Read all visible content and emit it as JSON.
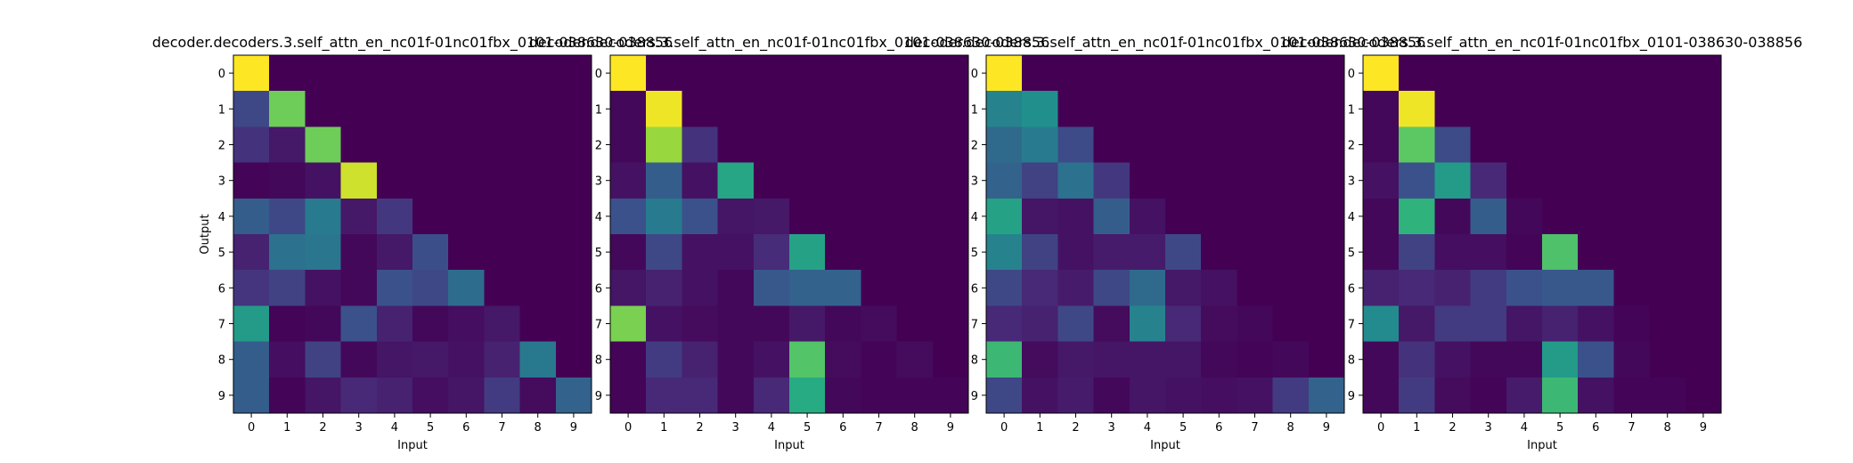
{
  "chart_data": [
    {
      "type": "heatmap",
      "title": "decoder.decoders.3.self_attn_en_nc01f-01nc01fbx_0101-038630-038856",
      "xlabel": "Input",
      "ylabel": "Output",
      "x_ticks": [
        "0",
        "1",
        "2",
        "3",
        "4",
        "5",
        "6",
        "7",
        "8",
        "9"
      ],
      "y_ticks": [
        "0",
        "1",
        "2",
        "3",
        "4",
        "5",
        "6",
        "7",
        "8",
        "9"
      ],
      "colormap": "viridis",
      "values": [
        [
          1.0,
          0.0,
          0.0,
          0.0,
          0.0,
          0.0,
          0.0,
          0.0,
          0.0,
          0.0
        ],
        [
          0.22,
          0.78,
          0.0,
          0.0,
          0.0,
          0.0,
          0.0,
          0.0,
          0.0,
          0.0
        ],
        [
          0.15,
          0.07,
          0.78,
          0.0,
          0.0,
          0.0,
          0.0,
          0.0,
          0.0,
          0.0
        ],
        [
          0.01,
          0.02,
          0.05,
          0.93,
          0.0,
          0.0,
          0.0,
          0.0,
          0.0,
          0.0
        ],
        [
          0.3,
          0.22,
          0.42,
          0.07,
          0.17,
          0.0,
          0.0,
          0.0,
          0.0,
          0.0
        ],
        [
          0.1,
          0.38,
          0.4,
          0.02,
          0.07,
          0.24,
          0.0,
          0.0,
          0.0,
          0.0
        ],
        [
          0.16,
          0.2,
          0.05,
          0.02,
          0.25,
          0.22,
          0.36,
          0.0,
          0.0,
          0.0
        ],
        [
          0.55,
          0.01,
          0.02,
          0.25,
          0.1,
          0.02,
          0.04,
          0.07,
          0.0,
          0.0
        ],
        [
          0.3,
          0.04,
          0.2,
          0.02,
          0.06,
          0.07,
          0.05,
          0.1,
          0.41,
          0.0
        ],
        [
          0.3,
          0.01,
          0.06,
          0.12,
          0.1,
          0.04,
          0.06,
          0.18,
          0.03,
          0.32
        ]
      ]
    },
    {
      "type": "heatmap",
      "title": "decoder.decoders.3.self_attn_en_nc01f-01nc01fbx_0101-038630-038856",
      "xlabel": "Input",
      "ylabel": "",
      "x_ticks": [
        "0",
        "1",
        "2",
        "3",
        "4",
        "5",
        "6",
        "7",
        "8",
        "9"
      ],
      "y_ticks": [
        "0",
        "1",
        "2",
        "3",
        "4",
        "5",
        "6",
        "7",
        "8",
        "9"
      ],
      "colormap": "viridis",
      "values": [
        [
          1.0,
          0.0,
          0.0,
          0.0,
          0.0,
          0.0,
          0.0,
          0.0,
          0.0,
          0.0
        ],
        [
          0.02,
          0.98,
          0.0,
          0.0,
          0.0,
          0.0,
          0.0,
          0.0,
          0.0,
          0.0
        ],
        [
          0.02,
          0.85,
          0.15,
          0.0,
          0.0,
          0.0,
          0.0,
          0.0,
          0.0,
          0.0
        ],
        [
          0.05,
          0.3,
          0.05,
          0.6,
          0.0,
          0.0,
          0.0,
          0.0,
          0.0,
          0.0
        ],
        [
          0.25,
          0.42,
          0.25,
          0.06,
          0.07,
          0.0,
          0.0,
          0.0,
          0.0,
          0.0
        ],
        [
          0.02,
          0.22,
          0.05,
          0.05,
          0.13,
          0.58,
          0.0,
          0.0,
          0.0,
          0.0
        ],
        [
          0.06,
          0.1,
          0.05,
          0.02,
          0.28,
          0.32,
          0.32,
          0.0,
          0.0,
          0.0
        ],
        [
          0.8,
          0.05,
          0.03,
          0.02,
          0.02,
          0.07,
          0.02,
          0.03,
          0.0,
          0.0
        ],
        [
          0.01,
          0.18,
          0.1,
          0.02,
          0.05,
          0.73,
          0.03,
          0.01,
          0.03,
          0.0
        ],
        [
          0.01,
          0.12,
          0.12,
          0.02,
          0.12,
          0.62,
          0.02,
          0.01,
          0.01,
          0.01
        ]
      ]
    },
    {
      "type": "heatmap",
      "title": "decoder.decoders.3.self_attn_en_nc01f-01nc01fbx_0101-038630-038856",
      "xlabel": "Input",
      "ylabel": "",
      "x_ticks": [
        "0",
        "1",
        "2",
        "3",
        "4",
        "5",
        "6",
        "7",
        "8",
        "9"
      ],
      "y_ticks": [
        "0",
        "1",
        "2",
        "3",
        "4",
        "5",
        "6",
        "7",
        "8",
        "9"
      ],
      "colormap": "viridis",
      "values": [
        [
          1.0,
          0.0,
          0.0,
          0.0,
          0.0,
          0.0,
          0.0,
          0.0,
          0.0,
          0.0
        ],
        [
          0.45,
          0.5,
          0.0,
          0.0,
          0.0,
          0.0,
          0.0,
          0.0,
          0.0,
          0.0
        ],
        [
          0.35,
          0.42,
          0.23,
          0.0,
          0.0,
          0.0,
          0.0,
          0.0,
          0.0,
          0.0
        ],
        [
          0.32,
          0.2,
          0.38,
          0.17,
          0.0,
          0.0,
          0.0,
          0.0,
          0.0,
          0.0
        ],
        [
          0.58,
          0.06,
          0.05,
          0.3,
          0.05,
          0.0,
          0.0,
          0.0,
          0.0,
          0.0
        ],
        [
          0.45,
          0.2,
          0.05,
          0.08,
          0.08,
          0.22,
          0.0,
          0.0,
          0.0,
          0.0
        ],
        [
          0.22,
          0.12,
          0.08,
          0.22,
          0.35,
          0.07,
          0.05,
          0.0,
          0.0,
          0.0
        ],
        [
          0.12,
          0.1,
          0.22,
          0.03,
          0.45,
          0.12,
          0.03,
          0.02,
          0.0,
          0.0
        ],
        [
          0.68,
          0.03,
          0.07,
          0.06,
          0.06,
          0.06,
          0.02,
          0.01,
          0.02,
          0.0
        ],
        [
          0.22,
          0.05,
          0.08,
          0.02,
          0.06,
          0.05,
          0.04,
          0.05,
          0.18,
          0.32
        ]
      ]
    },
    {
      "type": "heatmap",
      "title": "decoder.decoders.3.self_attn_en_nc01f-01nc01fbx_0101-038630-038856",
      "xlabel": "Input",
      "ylabel": "",
      "x_ticks": [
        "0",
        "1",
        "2",
        "3",
        "4",
        "5",
        "6",
        "7",
        "8",
        "9"
      ],
      "y_ticks": [
        "0",
        "1",
        "2",
        "3",
        "4",
        "5",
        "6",
        "7",
        "8",
        "9"
      ],
      "colormap": "viridis",
      "values": [
        [
          1.0,
          0.0,
          0.0,
          0.0,
          0.0,
          0.0,
          0.0,
          0.0,
          0.0,
          0.0
        ],
        [
          0.02,
          0.98,
          0.0,
          0.0,
          0.0,
          0.0,
          0.0,
          0.0,
          0.0,
          0.0
        ],
        [
          0.02,
          0.75,
          0.23,
          0.0,
          0.0,
          0.0,
          0.0,
          0.0,
          0.0,
          0.0
        ],
        [
          0.05,
          0.25,
          0.55,
          0.12,
          0.0,
          0.0,
          0.0,
          0.0,
          0.0,
          0.0
        ],
        [
          0.02,
          0.65,
          0.02,
          0.3,
          0.02,
          0.0,
          0.0,
          0.0,
          0.0,
          0.0
        ],
        [
          0.02,
          0.2,
          0.04,
          0.04,
          0.01,
          0.72,
          0.0,
          0.0,
          0.0,
          0.0
        ],
        [
          0.1,
          0.12,
          0.1,
          0.18,
          0.25,
          0.28,
          0.28,
          0.0,
          0.0,
          0.0
        ],
        [
          0.48,
          0.07,
          0.18,
          0.18,
          0.06,
          0.1,
          0.05,
          0.01,
          0.0,
          0.0
        ],
        [
          0.02,
          0.15,
          0.05,
          0.02,
          0.02,
          0.55,
          0.25,
          0.02,
          0.0,
          0.0
        ],
        [
          0.02,
          0.18,
          0.03,
          0.01,
          0.08,
          0.68,
          0.05,
          0.01,
          0.01,
          0.0
        ]
      ]
    }
  ]
}
